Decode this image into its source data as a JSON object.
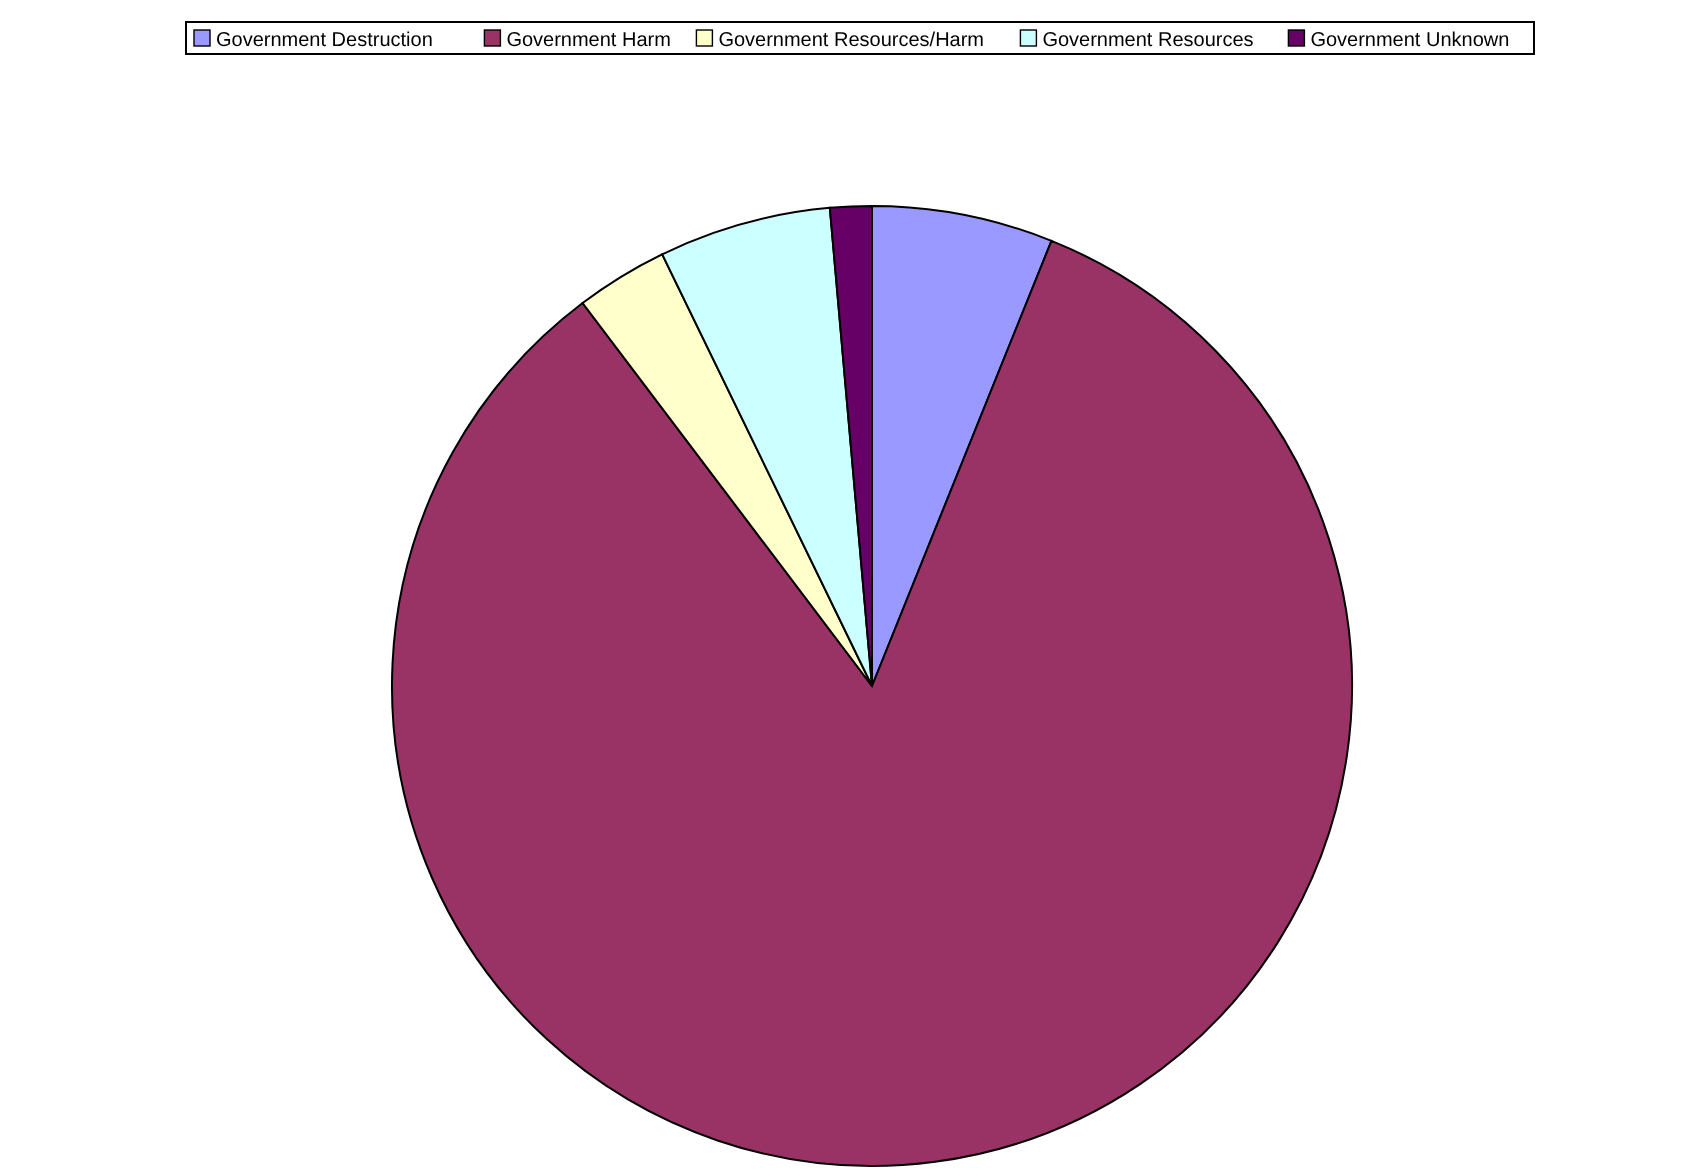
{
  "chart_data": {
    "type": "pie",
    "categories": [
      "Government Destruction",
      "Government Harm",
      "Government Resources/Harm",
      "Government Resources",
      "Government Unknown"
    ],
    "values": [
      6.1,
      83.6,
      3.1,
      5.8,
      1.4
    ],
    "colors": [
      "#9999ff",
      "#993366",
      "#ffffcc",
      "#ccffff",
      "#660066"
    ],
    "legend": "top"
  }
}
